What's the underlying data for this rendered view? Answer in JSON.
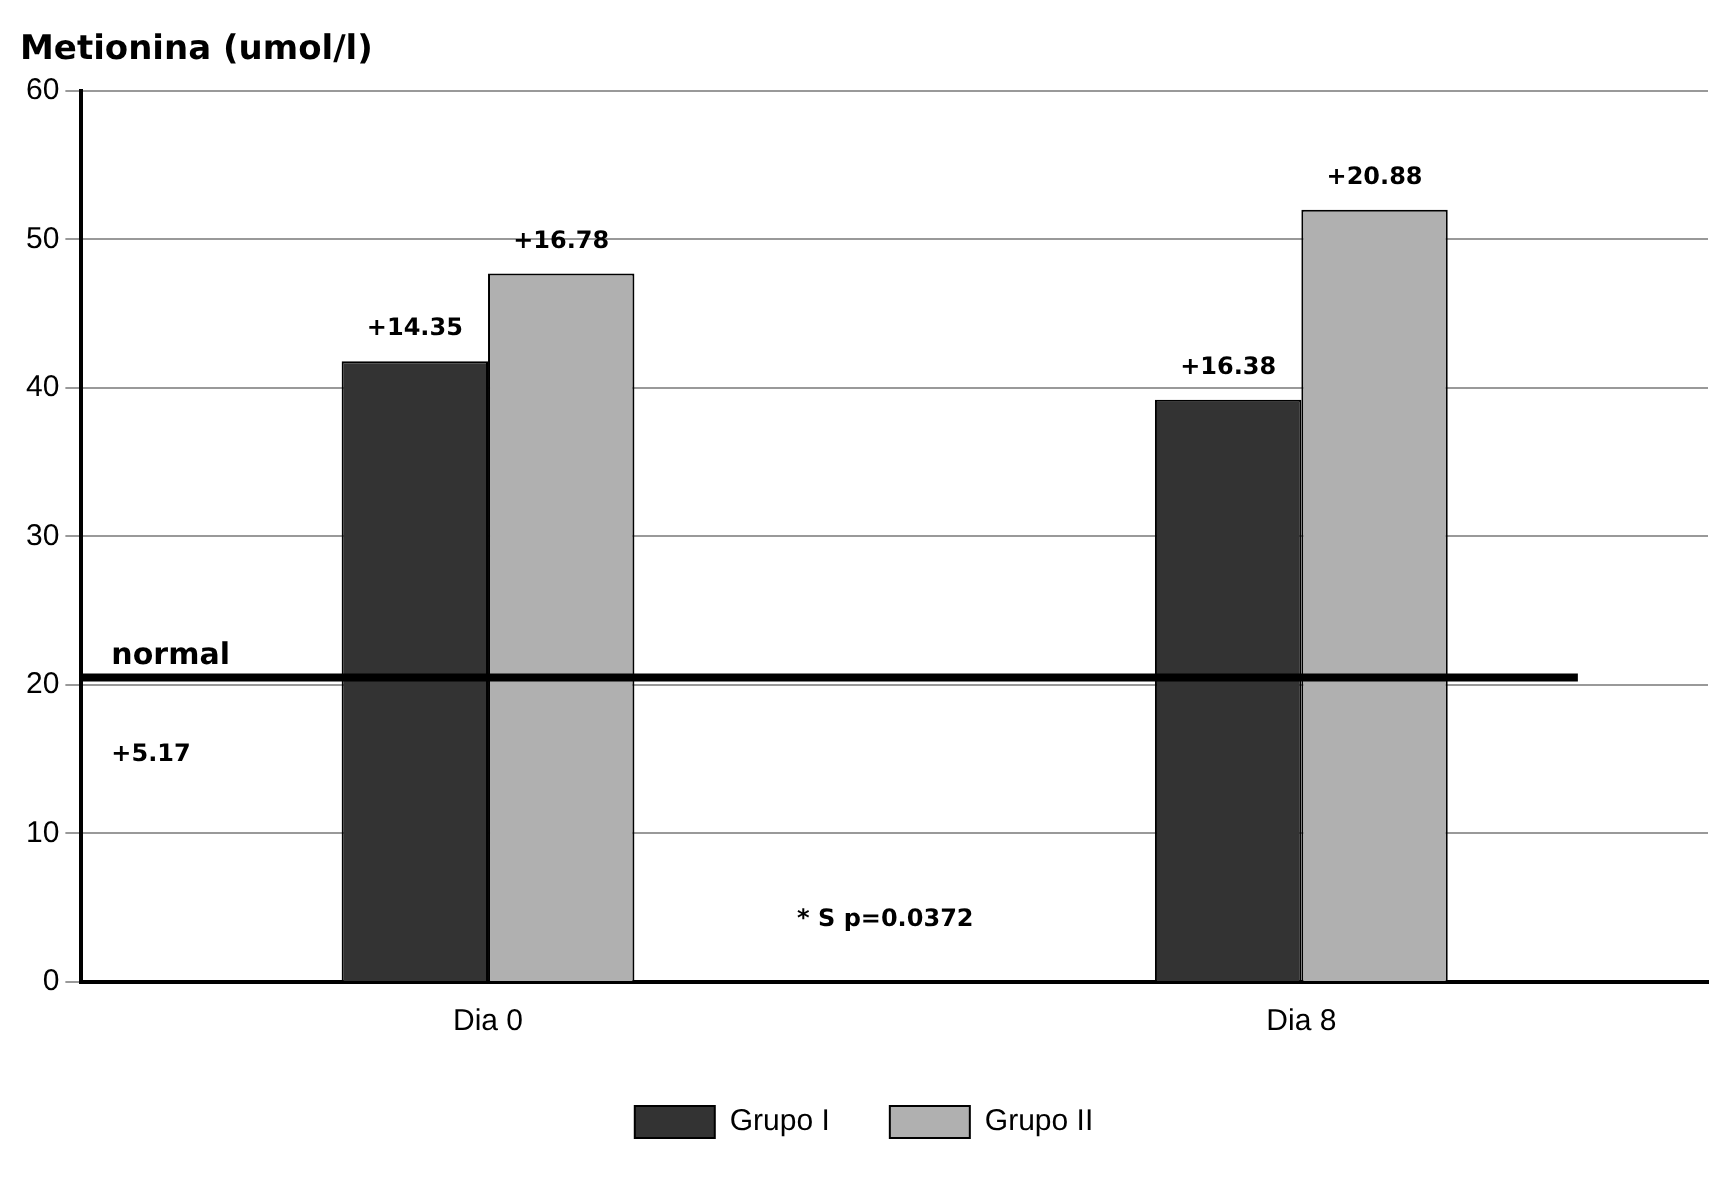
{
  "chart_data": {
    "type": "bar",
    "title": "Metionina (umol/l)",
    "categories": [
      "Dia 0",
      "Dia 8"
    ],
    "series": [
      {
        "name": "Grupo I",
        "color": "#333333",
        "values": [
          41.8,
          39.2
        ]
      },
      {
        "name": "Grupo II",
        "color": "#b0b0b0",
        "values": [
          47.7,
          52
        ]
      }
    ],
    "ylim": [
      0,
      60
    ],
    "yticks": [
      0,
      10,
      20,
      30,
      40,
      50,
      60
    ],
    "grid": "y",
    "legend": "bottom",
    "ref_lines": [
      {
        "axis": "y",
        "value": 20.5,
        "label": "normal",
        "color": "#000000"
      }
    ],
    "annotations": [
      "+14.35",
      "+16.78",
      "+16.38",
      "+20.88",
      "+5.17",
      "* S p=0.0372"
    ]
  }
}
